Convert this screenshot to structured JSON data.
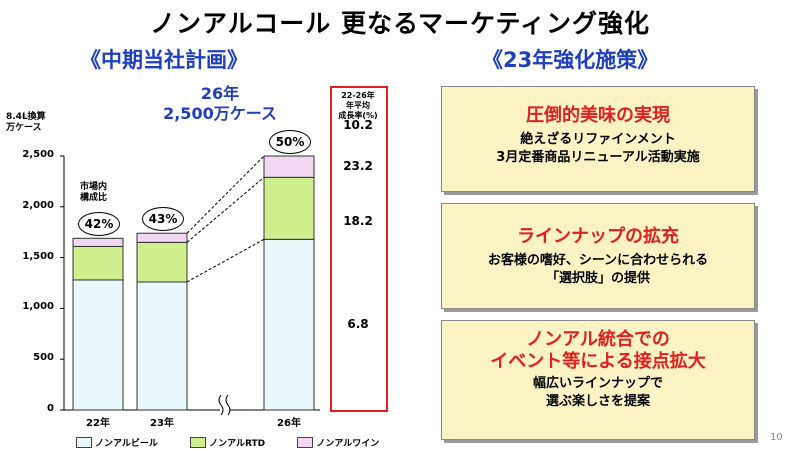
{
  "title": "ノンアルコール 更なるマーケティング強化",
  "left_title": "《中期当社計画》",
  "right_title": "《23年強化施策》",
  "target": {
    "year": "26年",
    "cases": "2,500万ケース"
  },
  "page_number": "10",
  "market_share_label": "市場内\n構成比",
  "cagr_label": "22-26年\n年平均\n成長率(%)",
  "colors": {
    "beer": "#e8f7fb",
    "rtd": "#cfee8d",
    "wine": "#f2d7f2",
    "accent": "#e02020",
    "blue": "#1f3fbf",
    "card_bg": "#fbf3c4"
  },
  "chart_data": {
    "type": "bar",
    "stacked": true,
    "categories": [
      "22年",
      "23年",
      "26年"
    ],
    "series": [
      {
        "name": "ノンアルビール",
        "values": [
          1280,
          1260,
          1680
        ]
      },
      {
        "name": "ノンアルRTD",
        "values": [
          330,
          390,
          610
        ]
      },
      {
        "name": "ノンアルワイン",
        "values": [
          80,
          90,
          210
        ]
      }
    ],
    "ylabel": "8.4L換算\n万ケース",
    "ylim": [
      0,
      2500
    ],
    "yticks": [
      "0",
      "500",
      "1,000",
      "1,500",
      "2,000",
      "2,500"
    ],
    "shares": [
      "42%",
      "43%",
      "50%"
    ],
    "cagr": [
      "10.2",
      "23.2",
      "18.2",
      "6.8"
    ],
    "axis_break": true
  },
  "cards": [
    {
      "heading": "圧倒的美味の実現",
      "lines": [
        "絶えざるリファインメント",
        "3月定番商品リニューアル活動実施"
      ]
    },
    {
      "heading": "ラインナップの拡充",
      "lines": [
        "お客様の嗜好、シーンに合わせられる",
        "「選択肢」の提供"
      ]
    },
    {
      "heading": "ノンアル統合での\nイベント等による接点拡大",
      "lines": [
        "幅広いラインナップで",
        "選ぶ楽しさを提案"
      ]
    }
  ]
}
